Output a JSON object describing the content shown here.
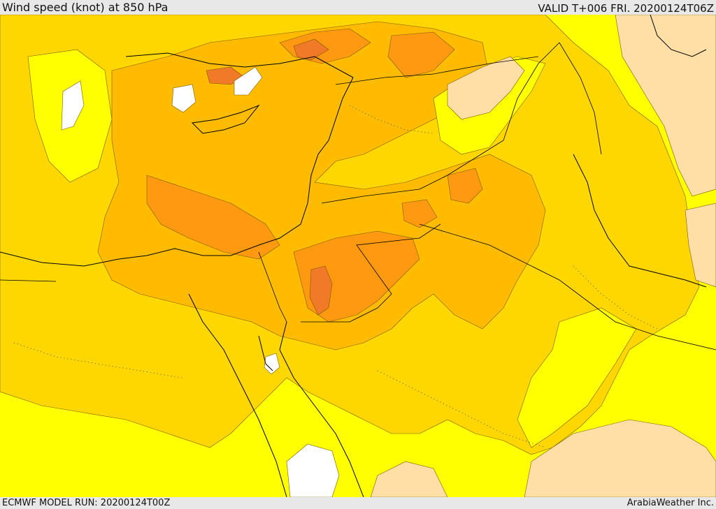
{
  "header": {
    "title": "Wind speed (knot) at 850 hPa",
    "valid": "VALID T+006 FRI. 20200124T06Z"
  },
  "footer": {
    "model_run": "ECMWF MODEL RUN: 20200124T00Z",
    "credit": "ArabiaWeather Inc."
  },
  "map": {
    "field": "wind speed",
    "level": "850 hPa",
    "colors": {
      "calm": "#ffffff",
      "low": "#ffdfa6",
      "light": "#ffff00",
      "moderate": "#ffd700",
      "fresh": "#ffbb00",
      "strong": "#ff9a10",
      "very_strong": "#f07a28"
    }
  }
}
